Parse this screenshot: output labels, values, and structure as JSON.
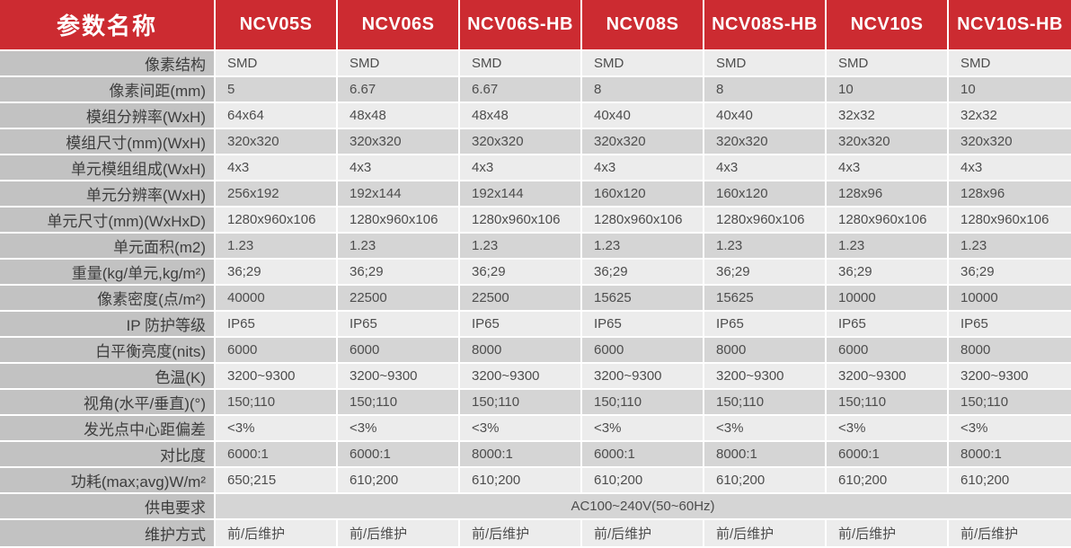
{
  "header": {
    "param_label": "参数名称",
    "products": [
      "NCV05S",
      "NCV06S",
      "NCV06S-HB",
      "NCV08S",
      "NCV08S-HB",
      "NCV10S",
      "NCV10S-HB"
    ]
  },
  "rows": [
    {
      "label": "像素结构",
      "values": [
        "SMD",
        "SMD",
        "SMD",
        "SMD",
        "SMD",
        "SMD",
        "SMD"
      ]
    },
    {
      "label": "像素间距(mm)",
      "values": [
        "5",
        "6.67",
        "6.67",
        "8",
        "8",
        "10",
        "10"
      ]
    },
    {
      "label": "模组分辨率(WxH)",
      "values": [
        "64x64",
        "48x48",
        "48x48",
        "40x40",
        "40x40",
        "32x32",
        "32x32"
      ]
    },
    {
      "label": "模组尺寸(mm)(WxH)",
      "values": [
        "320x320",
        "320x320",
        "320x320",
        "320x320",
        "320x320",
        "320x320",
        "320x320"
      ]
    },
    {
      "label": "单元模组组成(WxH)",
      "values": [
        "4x3",
        "4x3",
        "4x3",
        "4x3",
        "4x3",
        "4x3",
        "4x3"
      ]
    },
    {
      "label": "单元分辨率(WxH)",
      "values": [
        "256x192",
        "192x144",
        "192x144",
        "160x120",
        "160x120",
        "128x96",
        "128x96"
      ]
    },
    {
      "label": "单元尺寸(mm)(WxHxD)",
      "values": [
        "1280x960x106",
        "1280x960x106",
        "1280x960x106",
        "1280x960x106",
        "1280x960x106",
        "1280x960x106",
        "1280x960x106"
      ]
    },
    {
      "label": "单元面积(m2)",
      "values": [
        "1.23",
        "1.23",
        "1.23",
        "1.23",
        "1.23",
        "1.23",
        "1.23"
      ]
    },
    {
      "label": "重量(kg/单元,kg/m²)",
      "values": [
        "36;29",
        "36;29",
        "36;29",
        "36;29",
        "36;29",
        "36;29",
        "36;29"
      ]
    },
    {
      "label": "像素密度(点/m²)",
      "values": [
        "40000",
        "22500",
        "22500",
        "15625",
        "15625",
        "10000",
        "10000"
      ]
    },
    {
      "label": "IP 防护等级",
      "values": [
        "IP65",
        "IP65",
        "IP65",
        "IP65",
        "IP65",
        "IP65",
        "IP65"
      ]
    },
    {
      "label": "白平衡亮度(nits)",
      "values": [
        "6000",
        "6000",
        "8000",
        "6000",
        "8000",
        "6000",
        "8000"
      ]
    },
    {
      "label": "色温(K)",
      "values": [
        "3200~9300",
        "3200~9300",
        "3200~9300",
        "3200~9300",
        "3200~9300",
        "3200~9300",
        "3200~9300"
      ]
    },
    {
      "label": "视角(水平/垂直)(°)",
      "values": [
        "150;110",
        "150;110",
        "150;110",
        "150;110",
        "150;110",
        "150;110",
        "150;110"
      ]
    },
    {
      "label": "发光点中心距偏差",
      "values": [
        "<3%",
        "<3%",
        "<3%",
        "<3%",
        "<3%",
        "<3%",
        "<3%"
      ]
    },
    {
      "label": "对比度",
      "values": [
        "6000:1",
        "6000:1",
        "8000:1",
        "6000:1",
        "8000:1",
        "6000:1",
        "8000:1"
      ]
    },
    {
      "label": "功耗(max;avg)W/m²",
      "values": [
        "650;215",
        "610;200",
        "610;200",
        "610;200",
        "610;200",
        "610;200",
        "610;200"
      ]
    },
    {
      "label": "供电要求",
      "span": "AC100~240V(50~60Hz)"
    },
    {
      "label": "维护方式",
      "values": [
        "前/后维护",
        "前/后维护",
        "前/后维护",
        "前/后维护",
        "前/后维护",
        "前/后维护",
        "前/后维护"
      ]
    }
  ],
  "colors": {
    "header_bg": "#cc2b31",
    "header_text": "#ffffff",
    "label_col_bg": "#c2c2c2",
    "label_text": "#3d3d3d",
    "row_light": "#ececec",
    "row_dark": "#d5d5d5",
    "cell_text": "#4d4d4d"
  }
}
